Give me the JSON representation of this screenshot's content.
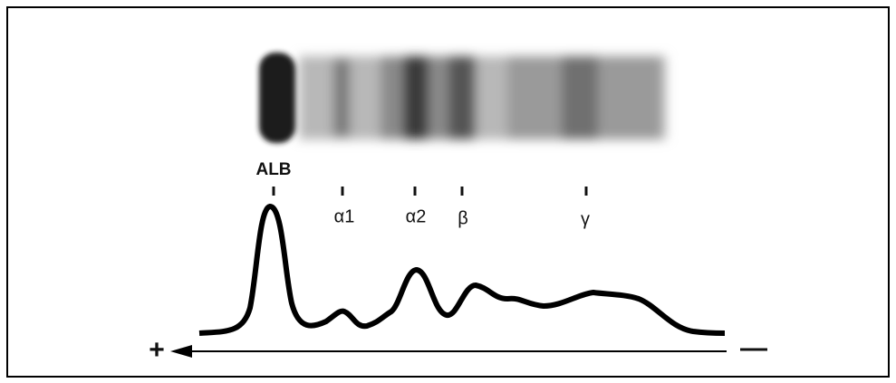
{
  "peaks": [
    {
      "label": "ALB"
    },
    {
      "label": "α1"
    },
    {
      "label": "α2"
    },
    {
      "label": "β"
    },
    {
      "label": "γ"
    }
  ],
  "anode": "+",
  "cathode": "—"
}
